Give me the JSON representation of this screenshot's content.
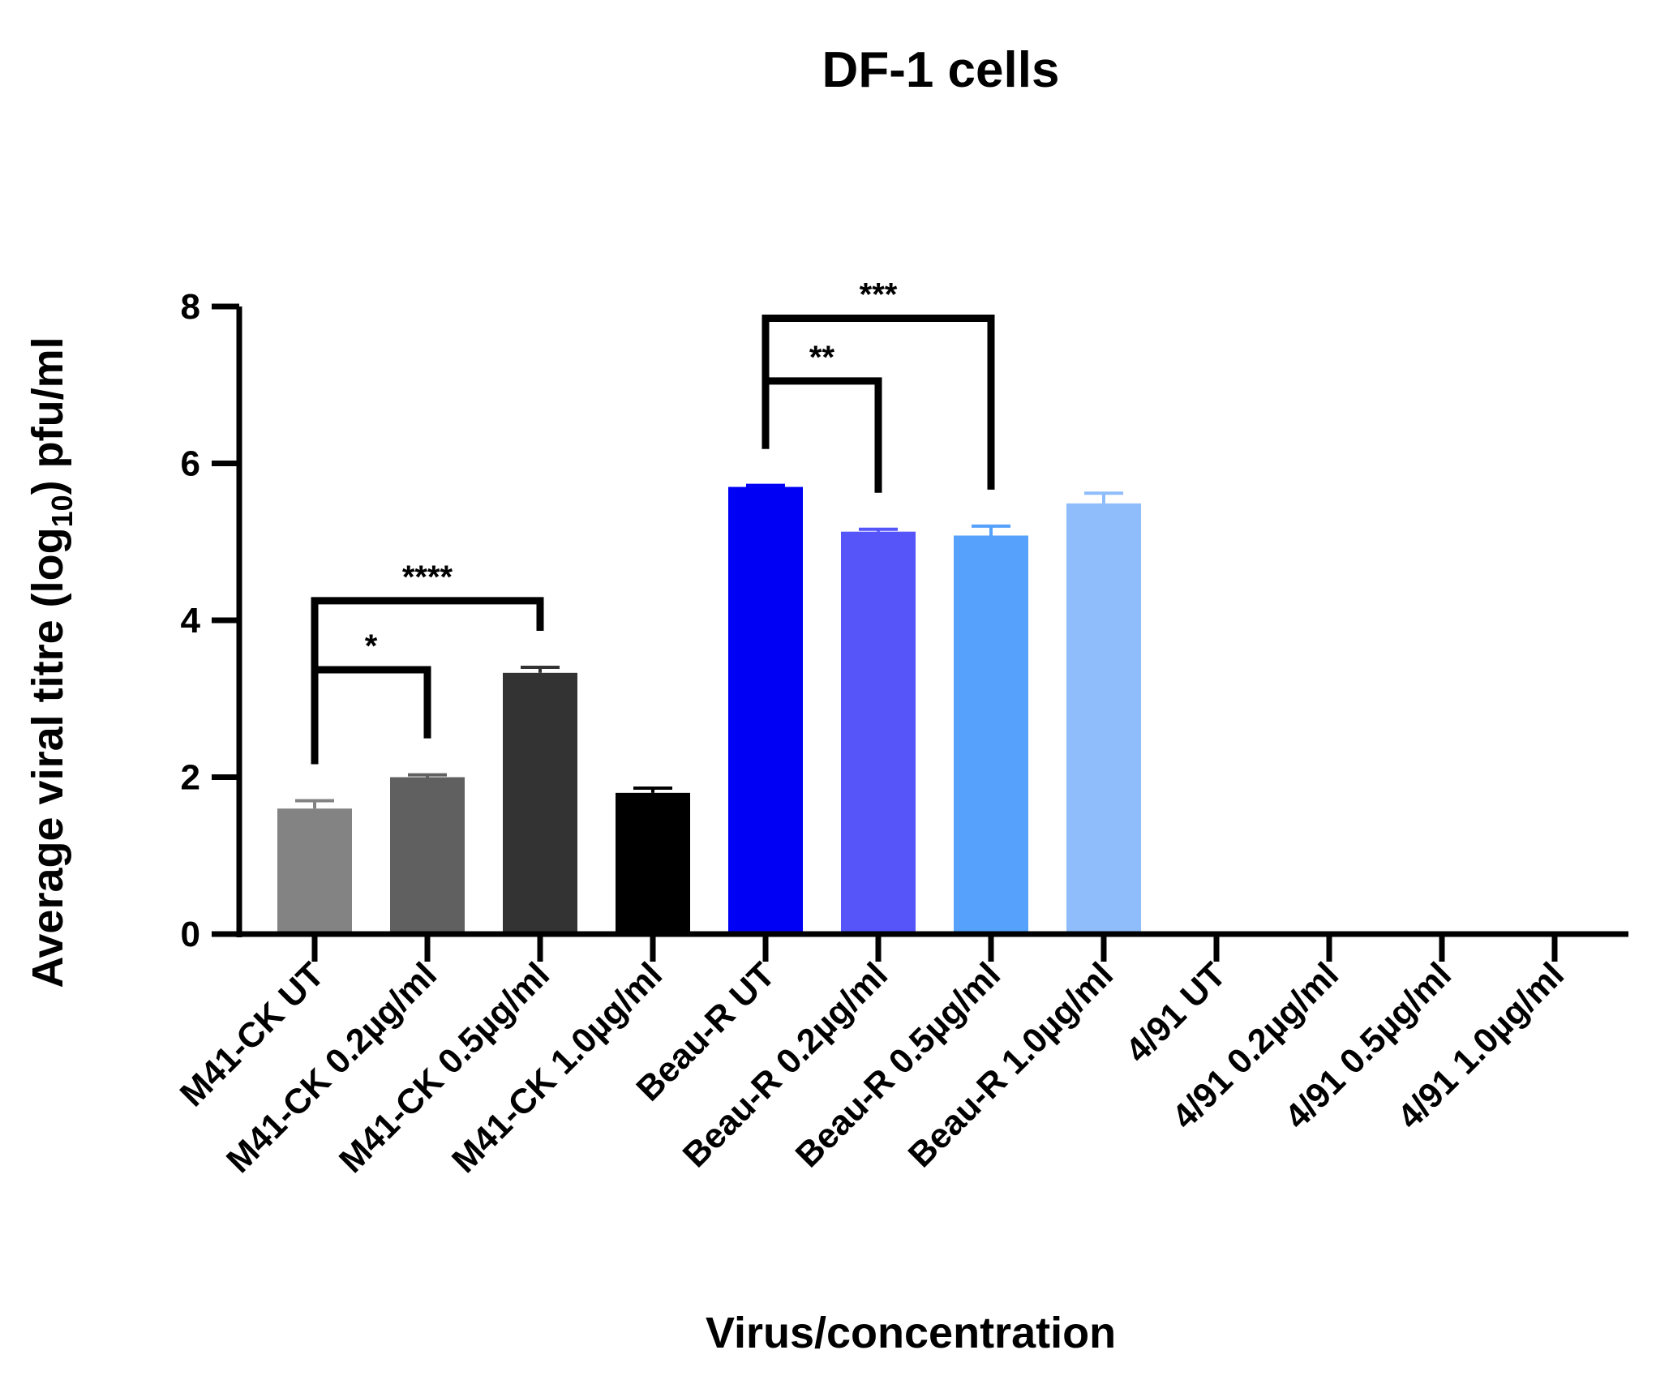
{
  "chart_data": {
    "type": "bar",
    "title": "DF-1 cells",
    "xlabel": "Virus/concentration",
    "ylabel_parts": [
      "Average viral titre (log",
      "10",
      ") pfu/ml"
    ],
    "ylim": [
      0,
      8
    ],
    "yticks": [
      0,
      2,
      4,
      6,
      8
    ],
    "grid": false,
    "legend": "none",
    "categories": [
      "M41-CK UT",
      "M41-CK 0.2µg/ml",
      "M41-CK 0.5µg/ml",
      "M41-CK 1.0µg/ml",
      "Beau-R UT",
      "Beau-R 0.2µg/ml",
      "Beau-R 0.5µg/ml",
      "Beau-R 1.0µg/ml",
      "4/91 UT",
      "4/91 0.2µg/ml",
      "4/91 0.5µg/ml",
      "4/91 1.0µg/ml"
    ],
    "values": [
      1.6,
      2.0,
      3.33,
      1.8,
      5.7,
      5.13,
      5.08,
      5.49,
      0,
      0,
      0,
      0
    ],
    "errors": [
      0.1,
      0.03,
      0.07,
      0.06,
      0.02,
      0.03,
      0.12,
      0.13,
      0,
      0,
      0,
      0
    ],
    "colors": [
      "#838383",
      "#606060",
      "#333333",
      "#000000",
      "#0000f5",
      "#5555fa",
      "#55a1fb",
      "#8fbdfb",
      "#ffffff",
      "#ffffff",
      "#ffffff",
      "#ffffff"
    ],
    "significance": [
      {
        "from": 0,
        "to": 1,
        "label": "*",
        "level": 3.37
      },
      {
        "from": 0,
        "to": 2,
        "label": "****",
        "level": 4.25
      },
      {
        "from": 4,
        "to": 5,
        "label": "**",
        "level": 7.05
      },
      {
        "from": 4,
        "to": 6,
        "label": "***",
        "level": 7.85
      }
    ]
  }
}
